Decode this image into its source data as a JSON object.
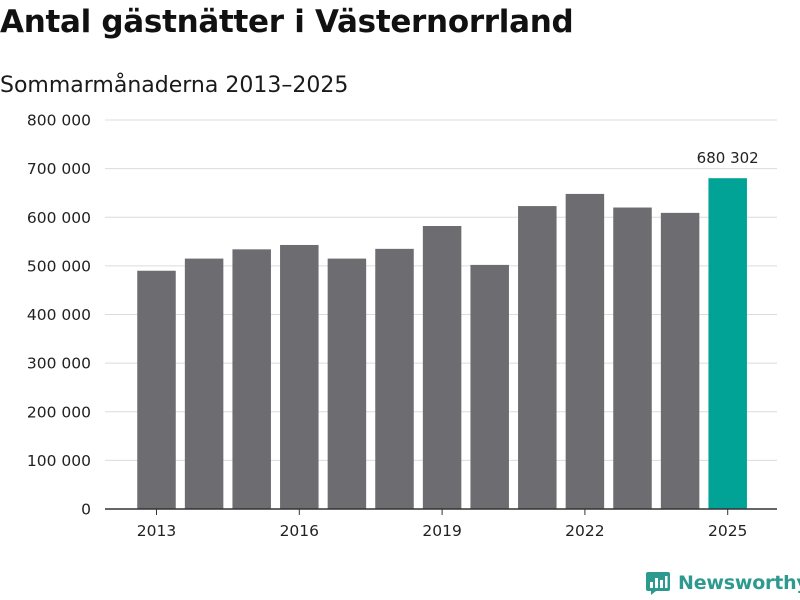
{
  "header": {
    "title": "Antal gästnätter i Västernorrland",
    "subtitle": "Sommarmånaderna 2013–2025"
  },
  "brand": {
    "name": "Newsworthy"
  },
  "colors": {
    "bar_default": "#6d6c71",
    "bar_highlight": "#00a396",
    "gridline": "#dcdcdc",
    "axis": "#333333",
    "brand": "#2e9a8f"
  },
  "chart_data": {
    "type": "bar",
    "title": "Antal gästnätter i Västernorrland",
    "subtitle": "Sommarmånaderna 2013–2025",
    "xlabel": "",
    "ylabel": "",
    "categories": [
      "2013",
      "2014",
      "2015",
      "2016",
      "2017",
      "2018",
      "2019",
      "2020",
      "2021",
      "2022",
      "2023",
      "2024",
      "2025"
    ],
    "values": [
      490000,
      515000,
      534000,
      543000,
      515000,
      535000,
      582000,
      502000,
      623000,
      648000,
      620000,
      609000,
      680302
    ],
    "highlight_index": 12,
    "xticks": [
      "2013",
      "2016",
      "2019",
      "2022",
      "2025"
    ],
    "yticks": [
      "0",
      "100 000",
      "200 000",
      "300 000",
      "400 000",
      "500 000",
      "600 000",
      "700 000",
      "800 000"
    ],
    "ylim": [
      0,
      800000
    ],
    "ytick_step": 100000,
    "annotations": [
      {
        "index": 12,
        "text": "680 302"
      }
    ],
    "grid": true,
    "legend": "none"
  }
}
